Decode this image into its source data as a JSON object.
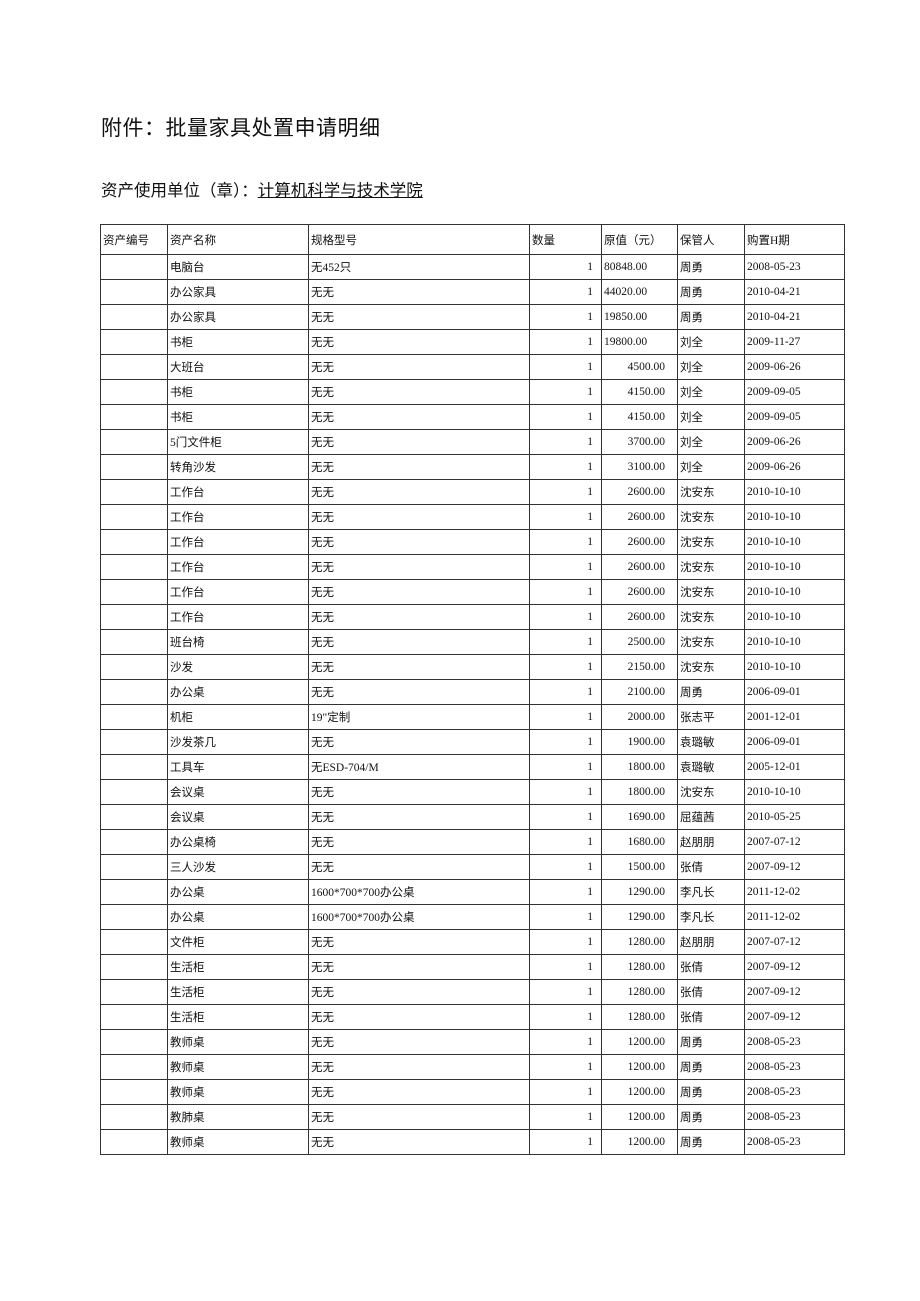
{
  "title": "附件：批量家具处置申请明细",
  "unit_label": "资产使用单位（章）：",
  "unit_name": "计算机科学与技术学院",
  "table": {
    "headers": [
      "资产编号",
      "资产名称",
      "规格型号",
      "数量",
      "原值（元）",
      "保管人",
      "购置H期"
    ],
    "rows": [
      [
        "",
        "电脑台",
        "无452只",
        "1",
        "80848.00",
        "周勇",
        "2008-05-23"
      ],
      [
        "",
        "办公家具",
        "无无",
        "1",
        "44020.00",
        "周勇",
        "2010-04-21"
      ],
      [
        "",
        "办公家具",
        "无无",
        "1",
        "19850.00",
        "周勇",
        "2010-04-21"
      ],
      [
        "",
        "书柜",
        "无无",
        "1",
        "19800.00",
        "刘全",
        "2009-11-27"
      ],
      [
        "",
        "大班台",
        "无无",
        "1",
        "4500.00",
        "刘全",
        "2009-06-26"
      ],
      [
        "",
        "书柜",
        "无无",
        "1",
        "4150.00",
        "刘全",
        "2009-09-05"
      ],
      [
        "",
        "书柜",
        "无无",
        "1",
        "4150.00",
        "刘全",
        "2009-09-05"
      ],
      [
        "",
        "5门文件柜",
        "无无",
        "1",
        "3700.00",
        "刘全",
        "2009-06-26"
      ],
      [
        "",
        "转角沙发",
        "无无",
        "1",
        "3100.00",
        "刘全",
        "2009-06-26"
      ],
      [
        "",
        "工作台",
        "无无",
        "1",
        "2600.00",
        "沈安东",
        "2010-10-10"
      ],
      [
        "",
        "工作台",
        "无无",
        "1",
        "2600.00",
        "沈安东",
        "2010-10-10"
      ],
      [
        "",
        "工作台",
        "无无",
        "1",
        "2600.00",
        "沈安东",
        "2010-10-10"
      ],
      [
        "",
        "工作台",
        "无无",
        "1",
        "2600.00",
        "沈安东",
        "2010-10-10"
      ],
      [
        "",
        "工作台",
        "无无",
        "1",
        "2600.00",
        "沈安东",
        "2010-10-10"
      ],
      [
        "",
        "工作台",
        "无无",
        "1",
        "2600.00",
        "沈安东",
        "2010-10-10"
      ],
      [
        "",
        "班台椅",
        "无无",
        "1",
        "2500.00",
        "沈安东",
        "2010-10-10"
      ],
      [
        "",
        "沙发",
        "无无",
        "1",
        "2150.00",
        "沈安东",
        "2010-10-10"
      ],
      [
        "",
        "办公桌",
        "无无",
        "1",
        "2100.00",
        "周勇",
        "2006-09-01"
      ],
      [
        "",
        "机柜",
        "19\"定制",
        "1",
        "2000.00",
        "张志平",
        "2001-12-01"
      ],
      [
        "",
        "沙发茶几",
        "无无",
        "1",
        "1900.00",
        "袁璐敏",
        "2006-09-01"
      ],
      [
        "",
        "工具车",
        "无ESD-704/M",
        "1",
        "1800.00",
        "袁璐敏",
        "2005-12-01"
      ],
      [
        "",
        "会议桌",
        "无无",
        "1",
        "1800.00",
        "沈安东",
        "2010-10-10"
      ],
      [
        "",
        "会议桌",
        "无无",
        "1",
        "1690.00",
        "屈蕴茜",
        "2010-05-25"
      ],
      [
        "",
        "办公桌椅",
        "无无",
        "1",
        "1680.00",
        "赵朋朋",
        "2007-07-12"
      ],
      [
        "",
        "三人沙发",
        "无无",
        "1",
        "1500.00",
        "张倩",
        "2007-09-12"
      ],
      [
        "",
        "办公桌",
        "1600*700*700办公桌",
        "1",
        "1290.00",
        "李凡长",
        "2011-12-02"
      ],
      [
        "",
        "办公桌",
        "1600*700*700办公桌",
        "1",
        "1290.00",
        "李凡长",
        "2011-12-02"
      ],
      [
        "",
        "文件柜",
        "无无",
        "1",
        "1280.00",
        "赵朋朋",
        "2007-07-12"
      ],
      [
        "",
        "生活柜",
        "无无",
        "1",
        "1280.00",
        "张倩",
        "2007-09-12"
      ],
      [
        "",
        "生活柜",
        "无无",
        "1",
        "1280.00",
        "张倩",
        "2007-09-12"
      ],
      [
        "",
        "生活柜",
        "无无",
        "1",
        "1280.00",
        "张倩",
        "2007-09-12"
      ],
      [
        "",
        "教师桌",
        "无无",
        "1",
        "1200.00",
        "周勇",
        "2008-05-23"
      ],
      [
        "",
        "教师桌",
        "无无",
        "1",
        "1200.00",
        "周勇",
        "2008-05-23"
      ],
      [
        "",
        "教师桌",
        "无无",
        "1",
        "1200.00",
        "周勇",
        "2008-05-23"
      ],
      [
        "",
        "教肺桌",
        "无无",
        "1",
        "1200.00",
        "周勇",
        "2008-05-23"
      ],
      [
        "",
        "教师桌",
        "无无",
        "1",
        "1200.00",
        "周勇",
        "2008-05-23"
      ]
    ]
  }
}
